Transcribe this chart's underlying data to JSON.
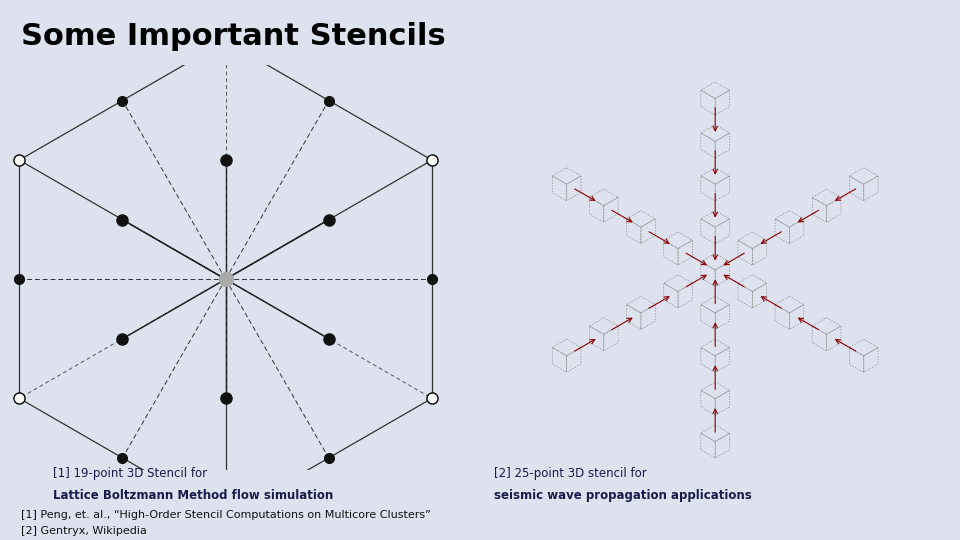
{
  "title": "Some Important Stencils",
  "title_fontsize": 22,
  "bg_color": "#dde2ee",
  "caption1_line1": "[1] 19-point 3D Stencil for",
  "caption1_line2": "Lattice Boltzmann Method flow simulation",
  "caption2_line1": "[2] 25-point 3D stencil for",
  "caption2_line2": "seismic wave propagation applications",
  "footer_line1": "[1] Peng, et. al., “High-Order Stencil Computations on Multicore Clusters”",
  "footer_line2": "[2] Gentryx, Wikipedia",
  "caption_fontsize": 8.5,
  "footer_fontsize": 8.0,
  "arrow_color": "#8b0000",
  "cube_edge_color": "#888888",
  "stencil_line_color": "#000000",
  "center_node_color": "#aaaaaa",
  "node_black": "#111111",
  "node_white_face": "#ffffff",
  "node_white_edge": "#000000"
}
